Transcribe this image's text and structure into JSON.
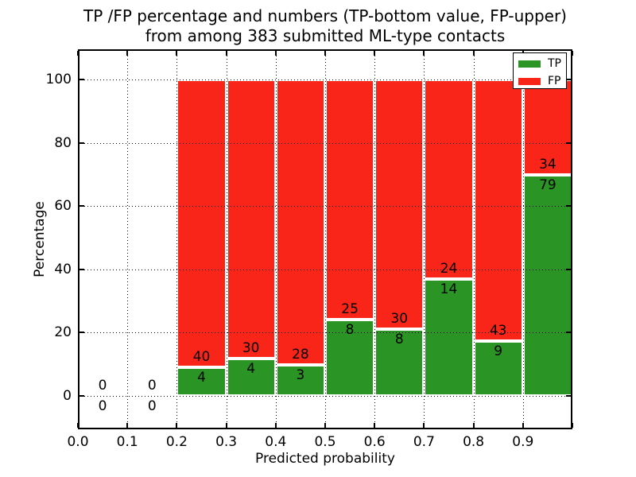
{
  "chart_data": {
    "type": "bar",
    "stacked_percentage": true,
    "title": "TP /FP percentage and numbers (TP-bottom value, FP-upper) from among 383 submitted ML-type contacts",
    "title_lines": [
      "TP /FP percentage and numbers (TP-bottom value, FP-upper)",
      "from among 383 submitted ML-type contacts"
    ],
    "xlabel": "Predicted probability",
    "ylabel": "Percentage",
    "xlim": [
      0.0,
      1.0
    ],
    "ylim": [
      -10.5,
      109.5
    ],
    "bar_width": 0.1,
    "grid": true,
    "x_ticks": [
      "0.0",
      "0.1",
      "0.2",
      "0.3",
      "0.4",
      "0.5",
      "0.6",
      "0.7",
      "0.8",
      "0.9"
    ],
    "y_ticks": [
      "0",
      "20",
      "40",
      "60",
      "80",
      "100"
    ],
    "total_contacts": 383,
    "legend": {
      "position": "upper right",
      "entries": [
        {
          "label": "TP",
          "color": "#2a9425"
        },
        {
          "label": "FP",
          "color": "#fa2519"
        }
      ]
    },
    "bins": [
      {
        "start": 0.0,
        "end": 0.1,
        "tp": 0,
        "fp": 0
      },
      {
        "start": 0.1,
        "end": 0.2,
        "tp": 0,
        "fp": 0
      },
      {
        "start": 0.2,
        "end": 0.3,
        "tp": 4,
        "fp": 40
      },
      {
        "start": 0.3,
        "end": 0.4,
        "tp": 4,
        "fp": 30
      },
      {
        "start": 0.4,
        "end": 0.5,
        "tp": 3,
        "fp": 28
      },
      {
        "start": 0.5,
        "end": 0.6,
        "tp": 8,
        "fp": 25
      },
      {
        "start": 0.6,
        "end": 0.7,
        "tp": 8,
        "fp": 30
      },
      {
        "start": 0.7,
        "end": 0.8,
        "tp": 14,
        "fp": 24
      },
      {
        "start": 0.8,
        "end": 0.9,
        "tp": 9,
        "fp": 43
      },
      {
        "start": 0.9,
        "end": 1.0,
        "tp": 79,
        "fp": 34
      }
    ]
  }
}
